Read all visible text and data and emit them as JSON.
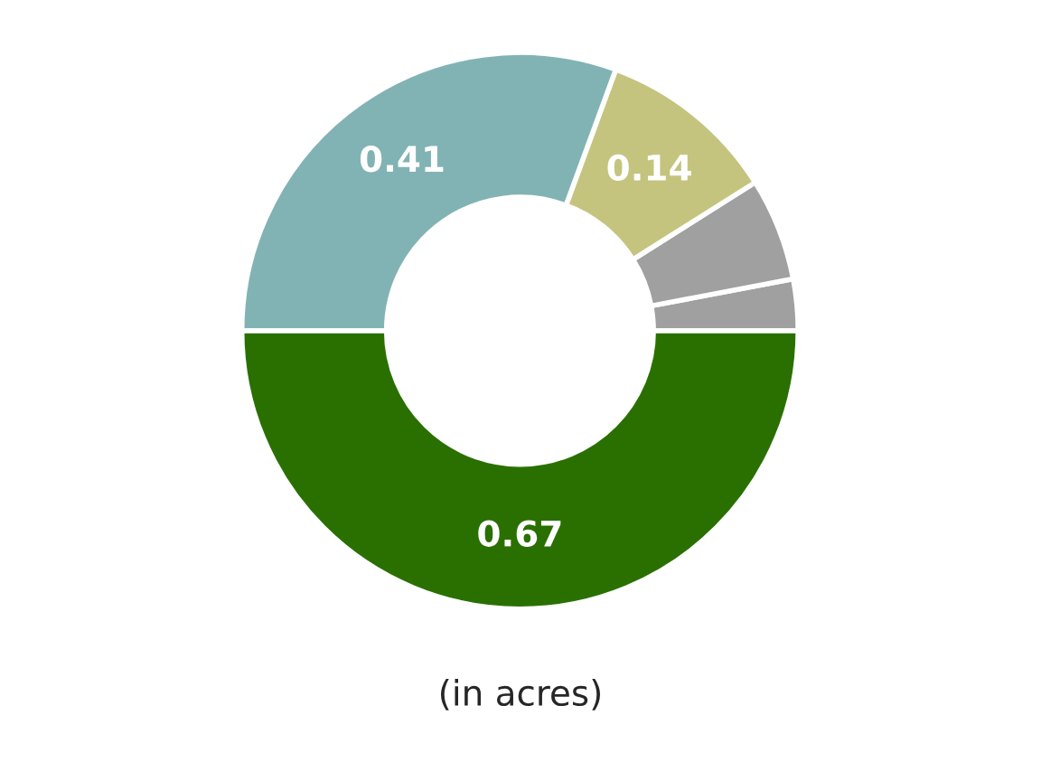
{
  "chart_data": {
    "type": "donut",
    "categories": [
      null,
      null,
      null,
      null,
      null
    ],
    "values": [
      0.04,
      0.08,
      0.14,
      0.41,
      0.67
    ],
    "value_labels": [
      null,
      null,
      "0.14",
      "0.41",
      "0.67"
    ],
    "colors": [
      "#a0a0a0",
      "#a0a0a0",
      "#c5c47f",
      "#82b3b4",
      "#2a7000"
    ],
    "annotations": [
      "(in acres)"
    ]
  }
}
